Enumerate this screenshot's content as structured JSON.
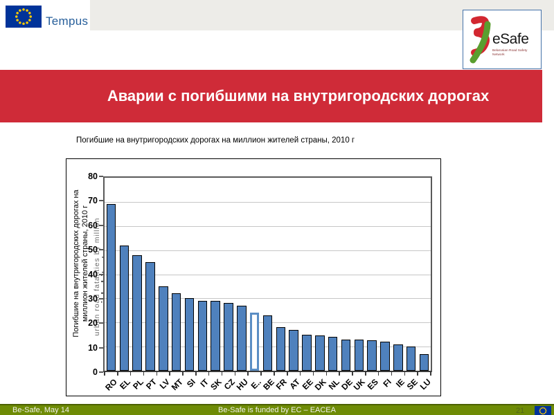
{
  "header": {
    "tempus_label": "Tempus",
    "esafe_name": "eSafe",
    "esafe_subtitle": "Belarusian Road Safety Network"
  },
  "banner": {
    "title": "Аварии с погибшими на внутригородских дорогах"
  },
  "subtitle": "Погибшие на внутригородских дорогах на миллион жителей страны, 2010 г",
  "chart_data": {
    "type": "bar",
    "title": "Погибшие на внутригородских дорогах на миллион жителей страны, 2010 г",
    "categories": [
      "RO",
      "EL",
      "PL",
      "PT",
      "LV",
      "MT",
      "SI",
      "IT",
      "SK",
      "CZ",
      "HU",
      "E..",
      "BE",
      "FR",
      "AT",
      "EE",
      "DK",
      "NL",
      "DE",
      "UK",
      "ES",
      "FI",
      "IE",
      "SE",
      "LU"
    ],
    "values": [
      69,
      52,
      48,
      45,
      35,
      32,
      30,
      29,
      29,
      28,
      27,
      24,
      23,
      18,
      17,
      15,
      14.5,
      14,
      13,
      13,
      12.5,
      12,
      11,
      10,
      7
    ],
    "highlight_index": 11,
    "ylim": [
      0,
      80
    ],
    "ytick_step": 10,
    "grid": true,
    "legend": "none",
    "ylabel_ru": [
      "Погибшие на внутригородских дорогах на",
      "миллион жителей страны, 2010 г"
    ],
    "ylabel_en": [
      "urban road fatalities by million",
      "inhabitants"
    ],
    "bar_color": "#4f81bd",
    "bar_border": "#000000",
    "highlight_fill": "#ffffff",
    "highlight_border": "#5b8ec4"
  },
  "footer": {
    "left": "Be-Safe, May 14",
    "center": "Be-Safe is funded by EC – EACEA",
    "page": "21"
  },
  "colors": {
    "banner_red": "#cf2b38",
    "footer_green": "#6e8b05",
    "top_strip_gray": "#edece8",
    "eu_flag_blue": "#003399",
    "star_yellow": "#ffcc00",
    "tempus_blue": "#265e9a",
    "esafe_red": "#d22730",
    "esafe_green": "#5a9e2f"
  }
}
